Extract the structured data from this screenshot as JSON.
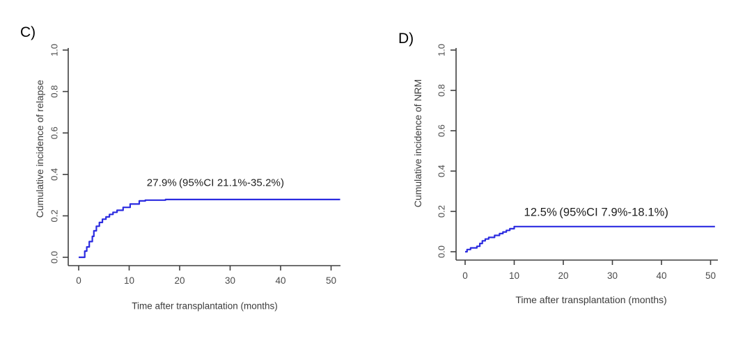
{
  "page": {
    "background": "#ffffff",
    "figure_type": "cumulative-incidence-step-plots"
  },
  "chart_data": [
    {
      "type": "line",
      "subtype": "step",
      "panel_label": "C)",
      "xlabel": "Time after transplantation (months)",
      "ylabel": "Cumulative incidence of relapse",
      "annotation": "27.9%（95%CI 21.1%-35.2%）",
      "estimate_pct": 27.9,
      "ci95_pct": [
        21.1,
        35.2
      ],
      "x_ticks": [
        0,
        10,
        20,
        30,
        40,
        50
      ],
      "y_tick_labels": [
        "0.0",
        "0.2",
        "0.4",
        "0.6",
        "0.8",
        "1.0"
      ],
      "xlim": [
        0,
        52
      ],
      "ylim": [
        0,
        1.0
      ],
      "grid": false,
      "legend": false,
      "line_color": "#2b2be0",
      "axis_color": "#3f3f3f",
      "tick_text_color": "#4a4a4a",
      "steps": [
        [
          0.0,
          0.0
        ],
        [
          1.2,
          0.03
        ],
        [
          1.6,
          0.05
        ],
        [
          2.1,
          0.076
        ],
        [
          2.7,
          0.101
        ],
        [
          3.0,
          0.128
        ],
        [
          3.5,
          0.15
        ],
        [
          4.1,
          0.168
        ],
        [
          4.7,
          0.184
        ],
        [
          5.4,
          0.195
        ],
        [
          6.1,
          0.207
        ],
        [
          6.8,
          0.217
        ],
        [
          7.6,
          0.227
        ],
        [
          8.8,
          0.241
        ],
        [
          10.2,
          0.257
        ],
        [
          12.0,
          0.272
        ],
        [
          13.2,
          0.276
        ],
        [
          17.2,
          0.279
        ],
        [
          51.8,
          0.279
        ]
      ]
    },
    {
      "type": "line",
      "subtype": "step",
      "panel_label": "D)",
      "xlabel": "Time after transplantation (months)",
      "ylabel": "Cumulative incidence of NRM",
      "annotation": "12.5%（95%CI 7.9%-18.1%）",
      "estimate_pct": 12.5,
      "ci95_pct": [
        7.9,
        18.1
      ],
      "x_ticks": [
        0,
        10,
        20,
        30,
        40,
        50
      ],
      "y_tick_labels": [
        "0.0",
        "0.2",
        "0.4",
        "0.6",
        "0.8",
        "1.0"
      ],
      "xlim": [
        0,
        52
      ],
      "ylim": [
        0,
        1.0
      ],
      "grid": false,
      "legend": false,
      "line_color": "#2b2be0",
      "axis_color": "#3f3f3f",
      "tick_text_color": "#4a4a4a",
      "steps": [
        [
          0.0,
          0.0
        ],
        [
          0.4,
          0.011
        ],
        [
          1.1,
          0.019
        ],
        [
          2.4,
          0.027
        ],
        [
          3.0,
          0.041
        ],
        [
          3.5,
          0.054
        ],
        [
          4.1,
          0.063
        ],
        [
          4.8,
          0.071
        ],
        [
          6.0,
          0.081
        ],
        [
          7.0,
          0.09
        ],
        [
          7.7,
          0.098
        ],
        [
          8.4,
          0.106
        ],
        [
          9.1,
          0.114
        ],
        [
          10.0,
          0.125
        ],
        [
          50.9,
          0.125
        ]
      ]
    }
  ]
}
